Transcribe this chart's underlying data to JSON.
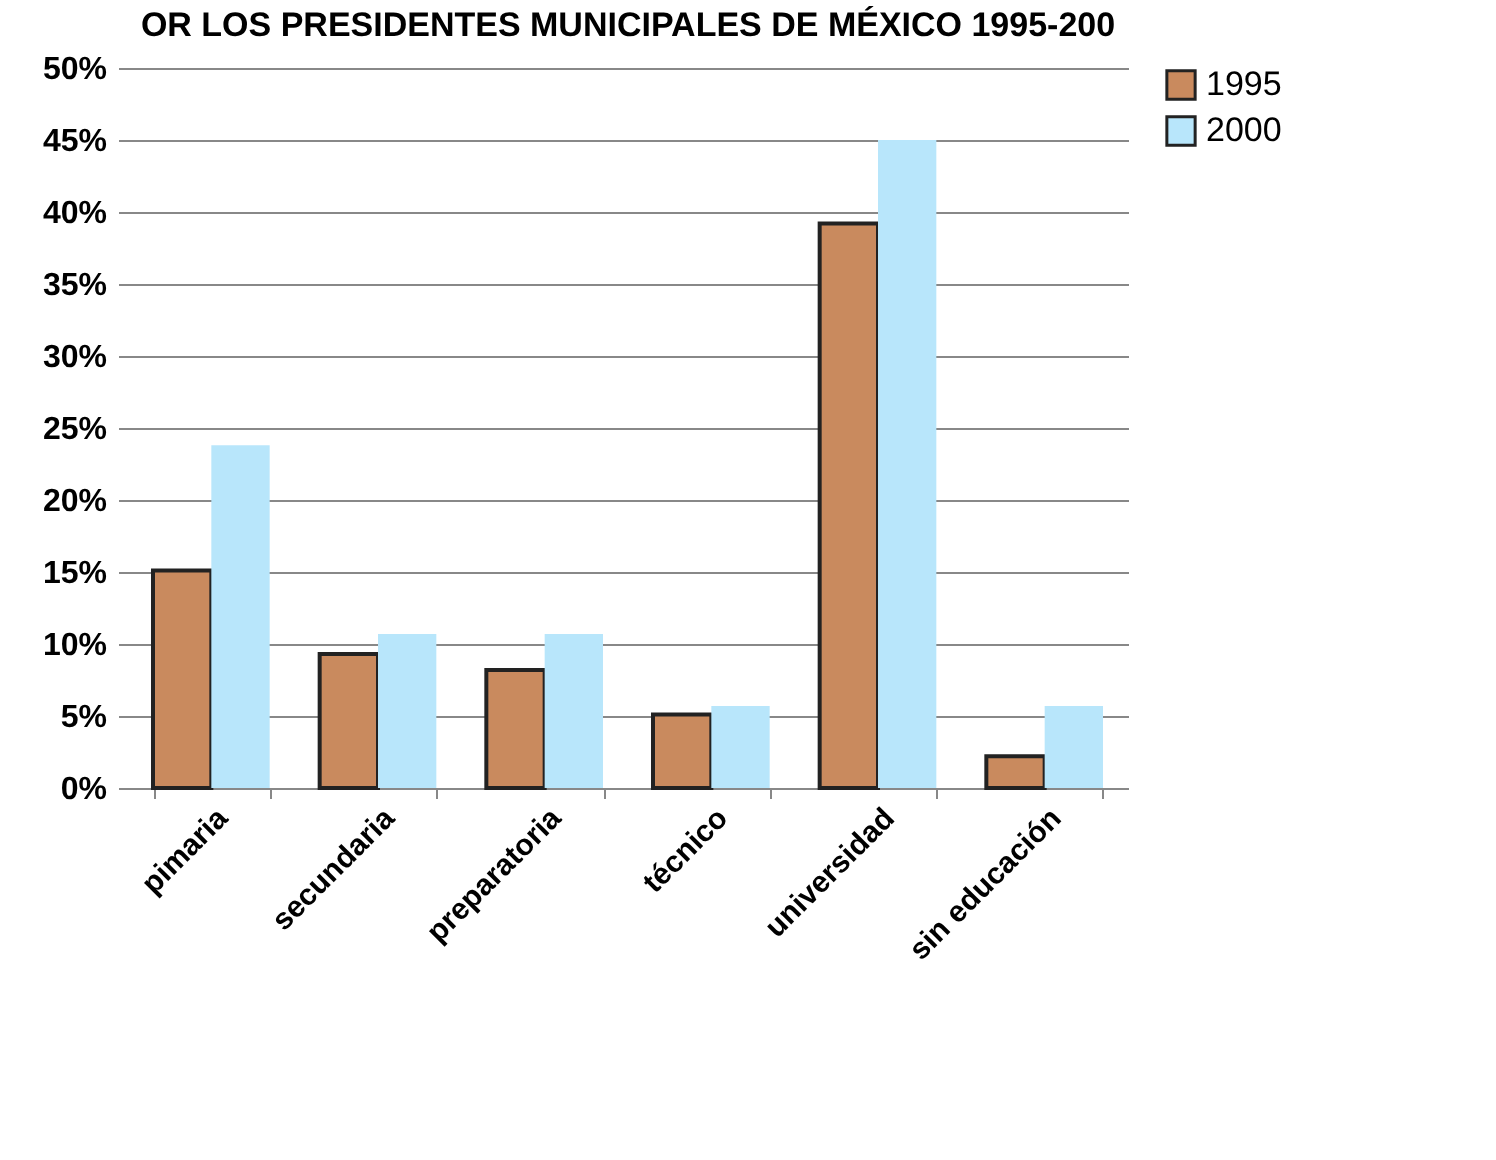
{
  "chart_data": {
    "type": "bar",
    "title": "OR LOS PRESIDENTES MUNICIPALES DE MÉXICO 1995-200",
    "categories": [
      "pimaria",
      "secundaria",
      "preparatoria",
      "técnico",
      "universidad",
      "sin educación"
    ],
    "series": [
      {
        "name": "1995",
        "color": "#c98a5e",
        "values": [
          15.1,
          9.3,
          8.2,
          5.1,
          39.2,
          2.2
        ]
      },
      {
        "name": "2000",
        "color": "#b8e6fb",
        "values": [
          23.8,
          10.7,
          10.7,
          5.7,
          45,
          5.7
        ]
      }
    ],
    "ylim": [
      0,
      50
    ],
    "yticks": [
      {
        "value": 0,
        "label": "0%"
      },
      {
        "value": 5,
        "label": "5%"
      },
      {
        "value": 10,
        "label": "10%"
      },
      {
        "value": 15,
        "label": "15%"
      },
      {
        "value": 20,
        "label": "20%"
      },
      {
        "value": 25,
        "label": "25%"
      },
      {
        "value": 30,
        "label": "30%"
      },
      {
        "value": 35,
        "label": "35%"
      },
      {
        "value": 40,
        "label": "40%"
      },
      {
        "value": 45,
        "label": "45%"
      },
      {
        "value": 50,
        "label": "50%"
      }
    ],
    "grid": "y",
    "legend": "right"
  }
}
